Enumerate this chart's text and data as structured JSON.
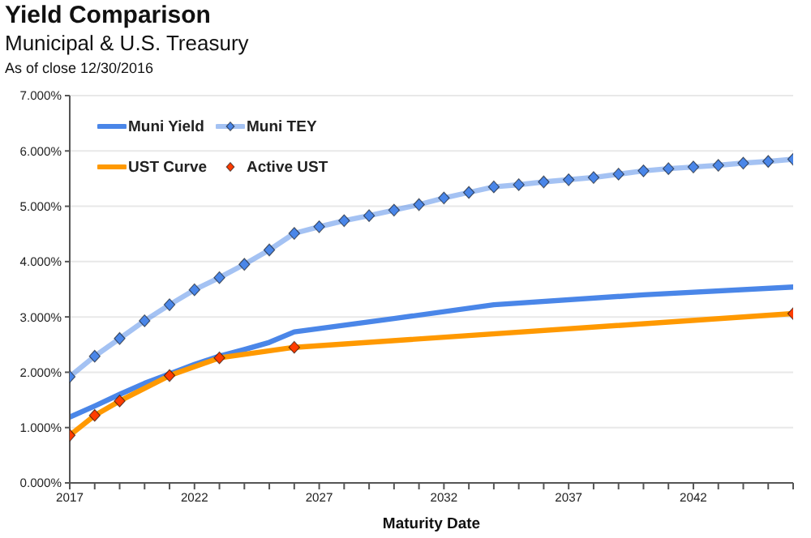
{
  "chart_data": {
    "type": "line",
    "title": "Yield Comparison",
    "subtitle": "Municipal & U.S. Treasury",
    "annotations": [
      "As of close 12/30/2016"
    ],
    "xlabel": "Maturity Date",
    "xlim": [
      2017,
      2046
    ],
    "xticks": [
      2017,
      {
        "value": 2018,
        "label": null
      },
      {
        "value": 2019,
        "label": null
      },
      {
        "value": 2020,
        "label": null
      },
      {
        "value": 2021,
        "label": null
      },
      2022,
      {
        "value": 2023,
        "label": null
      },
      {
        "value": 2024,
        "label": null
      },
      {
        "value": 2025,
        "label": null
      },
      {
        "value": 2026,
        "label": null
      },
      2027,
      {
        "value": 2028,
        "label": null
      },
      {
        "value": 2029,
        "label": null
      },
      {
        "value": 2030,
        "label": null
      },
      {
        "value": 2031,
        "label": null
      },
      2032,
      {
        "value": 2033,
        "label": null
      },
      {
        "value": 2034,
        "label": null
      },
      {
        "value": 2035,
        "label": null
      },
      {
        "value": 2036,
        "label": null
      },
      2037,
      {
        "value": 2038,
        "label": null
      },
      {
        "value": 2039,
        "label": null
      },
      {
        "value": 2040,
        "label": null
      },
      {
        "value": 2041,
        "label": null
      },
      2042,
      {
        "value": 2043,
        "label": null
      },
      {
        "value": 2044,
        "label": null
      },
      {
        "value": 2045,
        "label": null
      },
      {
        "value": 2046,
        "label": null
      }
    ],
    "ylim": [
      0,
      7
    ],
    "yticks": [
      {
        "value": 0,
        "label": "0.000%"
      },
      {
        "value": 1,
        "label": "1.000%"
      },
      {
        "value": 2,
        "label": "2.000%"
      },
      {
        "value": 3,
        "label": "3.000%"
      },
      {
        "value": 4,
        "label": "4.000%"
      },
      {
        "value": 5,
        "label": "5.000%"
      },
      {
        "value": 6,
        "label": "6.000%"
      },
      {
        "value": 7,
        "label": "7.000%"
      }
    ],
    "grid": "y",
    "legend": "top left",
    "series": [
      {
        "name": "Muni Yield",
        "color": "#4a86e8",
        "marker": "none",
        "x": [
          2017,
          2018,
          2019,
          2020,
          2021,
          2022,
          2023,
          2024,
          2025,
          2026,
          2030,
          2034,
          2040,
          2046
        ],
        "values": [
          1.19,
          1.39,
          1.6,
          1.8,
          1.97,
          2.14,
          2.29,
          2.41,
          2.54,
          2.73,
          2.97,
          3.22,
          3.4,
          3.54
        ]
      },
      {
        "name": "Muni TEY",
        "color": "#4a86e8",
        "marker": "diamond",
        "x": [
          2017,
          2018,
          2019,
          2020,
          2021,
          2022,
          2023,
          2024,
          2025,
          2026,
          2027,
          2028,
          2029,
          2030,
          2031,
          2032,
          2033,
          2034,
          2035,
          2036,
          2037,
          2038,
          2039,
          2040,
          2041,
          2042,
          2043,
          2044,
          2045,
          2046
        ],
        "values": [
          1.92,
          2.29,
          2.61,
          2.93,
          3.22,
          3.49,
          3.71,
          3.95,
          4.21,
          4.51,
          4.63,
          4.74,
          4.83,
          4.93,
          5.03,
          5.15,
          5.25,
          5.35,
          5.39,
          5.44,
          5.48,
          5.52,
          5.58,
          5.64,
          5.68,
          5.71,
          5.74,
          5.78,
          5.81,
          5.85
        ]
      },
      {
        "name": "UST Curve",
        "color": "#ff9900",
        "marker": "none",
        "x": [
          2017,
          2018,
          2019,
          2021,
          2023,
          2026,
          2046
        ],
        "values": [
          0.86,
          1.22,
          1.48,
          1.94,
          2.26,
          2.45,
          3.06
        ]
      },
      {
        "name": "Active UST",
        "type": "scatter",
        "color": "#ff3d00",
        "marker": "diamond",
        "x": [
          2017,
          2018,
          2019,
          2021,
          2023,
          2026,
          2046
        ],
        "values": [
          0.86,
          1.22,
          1.48,
          1.94,
          2.26,
          2.45,
          3.06
        ]
      }
    ]
  }
}
